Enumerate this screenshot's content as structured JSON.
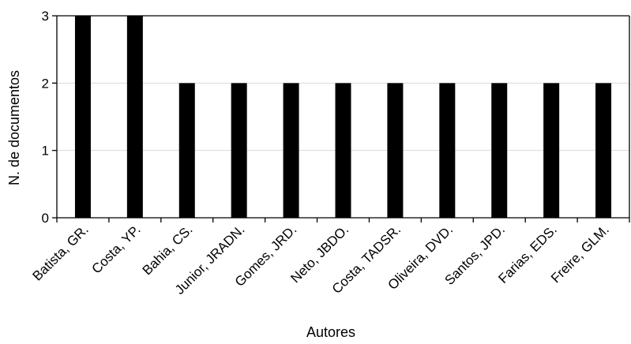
{
  "chart_data": {
    "type": "bar",
    "categories": [
      "Batista, GR.",
      "Costa, YP.",
      "Bahia, CS.",
      "Junior, JRADN.",
      "Gomes, JRD.",
      "Neto, JBDO.",
      "Costa, TADSR.",
      "Oliveira, DVD.",
      "Santos, JPD.",
      "Farias, EDS.",
      "Freire, GLM."
    ],
    "values": [
      3,
      3,
      2,
      2,
      2,
      2,
      2,
      2,
      2,
      2,
      2
    ],
    "xlabel": "Autores",
    "ylabel": "N. de documentos",
    "ylim": [
      0,
      3
    ],
    "yticks": [
      0,
      1,
      2,
      3
    ],
    "grid": true,
    "colors": {
      "bar": "#000000",
      "grid": "#d9d9d9",
      "axis": "#000000"
    }
  }
}
